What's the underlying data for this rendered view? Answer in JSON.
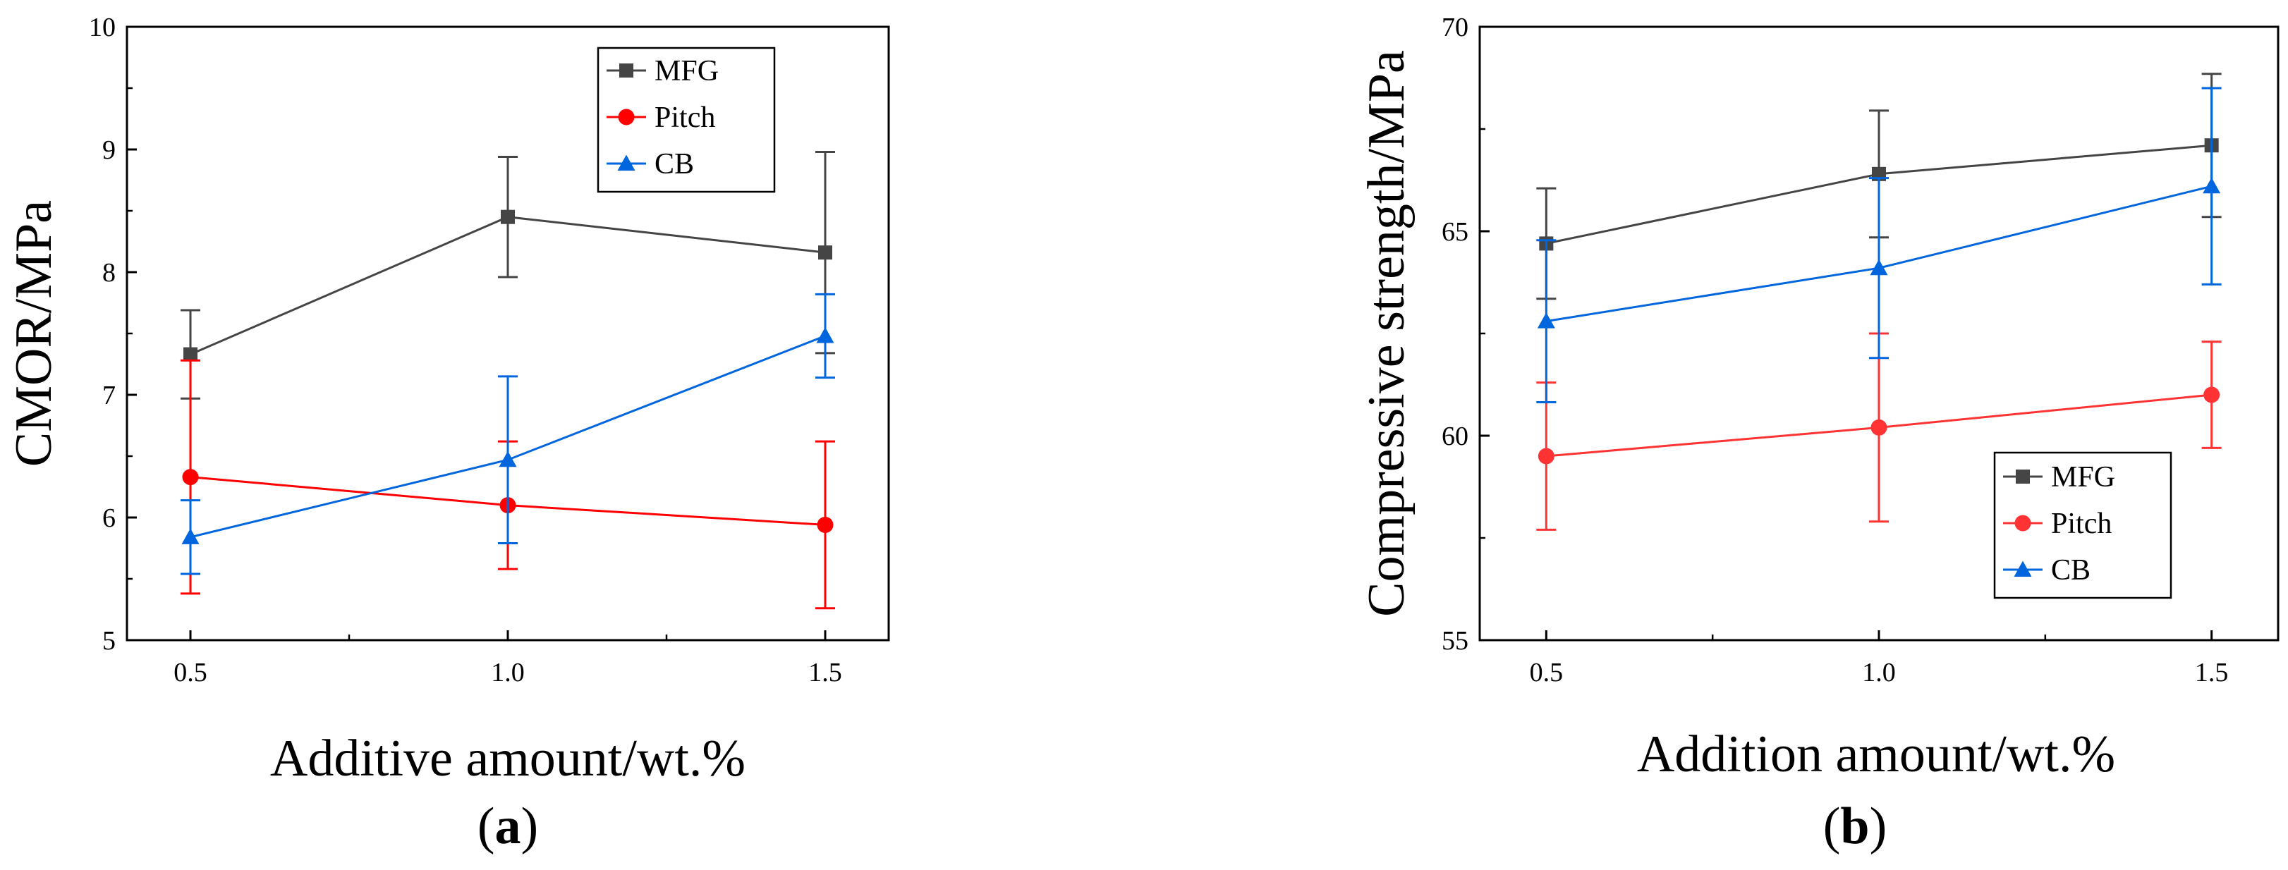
{
  "chart_data": [
    {
      "id": "a",
      "type": "line",
      "panel_label": "a",
      "title": "",
      "xlabel": "Additive amount/wt.%",
      "ylabel": "CMOR/MPa",
      "xlim": [
        0.4,
        1.6
      ],
      "ylim": [
        5,
        10
      ],
      "xticks": [
        0.5,
        1.0,
        1.5
      ],
      "xtick_labels": [
        "0.5",
        "1.0",
        "1.5"
      ],
      "yticks": [
        5,
        6,
        7,
        8,
        9,
        10
      ],
      "ytick_labels": [
        "5",
        "6",
        "7",
        "8",
        "9",
        "10"
      ],
      "legend_position": "top-right",
      "series": [
        {
          "name": "MFG",
          "color": "#454545",
          "marker": "square",
          "x": [
            0.5,
            1.0,
            1.5
          ],
          "values": [
            7.33,
            8.45,
            8.16
          ],
          "errors": [
            0.36,
            0.49,
            0.82
          ]
        },
        {
          "name": "Pitch",
          "color": "#ff0000",
          "marker": "circle",
          "x": [
            0.5,
            1.0,
            1.5
          ],
          "values": [
            6.33,
            6.1,
            5.94
          ],
          "errors": [
            0.95,
            0.52,
            0.68
          ]
        },
        {
          "name": "CB",
          "color": "#0066dd",
          "marker": "triangle",
          "x": [
            0.5,
            1.0,
            1.5
          ],
          "values": [
            5.84,
            6.47,
            7.48
          ],
          "errors": [
            0.3,
            0.68,
            0.34
          ]
        }
      ]
    },
    {
      "id": "b",
      "type": "line",
      "panel_label": "b",
      "title": "",
      "xlabel": "Addition amount/wt.%",
      "ylabel": "Compressive strength/MPa",
      "xlim": [
        0.4,
        1.6
      ],
      "ylim": [
        55,
        70
      ],
      "xticks": [
        0.5,
        1.0,
        1.5
      ],
      "xtick_labels": [
        "0.5",
        "1.0",
        "1.5"
      ],
      "yticks": [
        55,
        60,
        65,
        70
      ],
      "ytick_labels": [
        "55",
        "60",
        "65",
        "70"
      ],
      "legend_position": "middle-right",
      "series": [
        {
          "name": "MFG",
          "color": "#454545",
          "marker": "square",
          "x": [
            0.5,
            1.0,
            1.5
          ],
          "values": [
            64.7,
            66.4,
            67.1
          ],
          "errors": [
            1.35,
            1.55,
            1.75
          ]
        },
        {
          "name": "Pitch",
          "color": "#ff3333",
          "marker": "circle",
          "x": [
            0.5,
            1.0,
            1.5
          ],
          "values": [
            59.5,
            60.2,
            61.0
          ],
          "errors": [
            1.8,
            2.3,
            1.3
          ]
        },
        {
          "name": "CB",
          "color": "#0066dd",
          "marker": "triangle",
          "x": [
            0.5,
            1.0,
            1.5
          ],
          "values": [
            62.8,
            64.1,
            66.1
          ],
          "errors": [
            1.98,
            2.2,
            2.4
          ]
        }
      ]
    }
  ]
}
